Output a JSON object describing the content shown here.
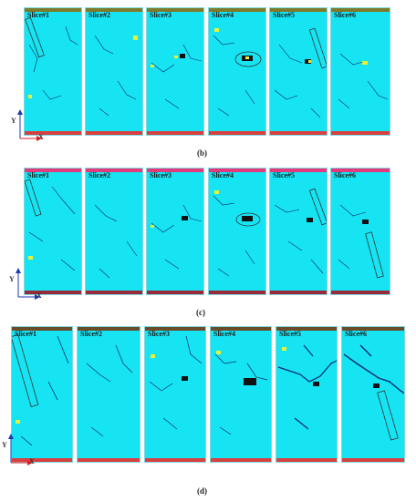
{
  "colors": {
    "material": "#16e4f2",
    "top_bar_b": "#7e7a2a",
    "bottom_bar_b": "#d84040",
    "top_bar_c": "#e23a7a",
    "bottom_bar_c": "#9a2a3a",
    "top_bar_d": "#6b4c2a",
    "bottom_bar_d": "#d84040",
    "crack": "#0b2a6a",
    "yellow": "#e6f23a",
    "red": "#e02020",
    "axis": "#1a3ab8"
  },
  "axes": {
    "y": "Y",
    "x": "X"
  },
  "panels": [
    {
      "caption": "(b)",
      "slices": [
        "Slice#1",
        "Slice#2",
        "Slice#3",
        "Slice#4",
        "Slice#5",
        "Slice#6"
      ]
    },
    {
      "caption": "(c)",
      "slices": [
        "Slice#1",
        "Slice#2",
        "Slice#3",
        "Slice#4",
        "Slice#5",
        "Slice#6"
      ]
    },
    {
      "caption": "(d)",
      "slices": [
        "Slice#1",
        "Slice#2",
        "Slice#3",
        "Slice#4",
        "Slice#5",
        "Slice#6"
      ]
    }
  ]
}
